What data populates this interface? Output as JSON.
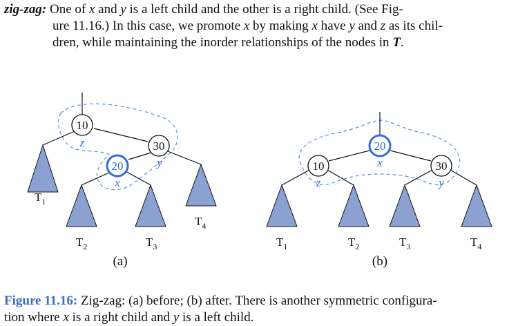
{
  "paragraph": {
    "term": "zig-zag",
    "colon": ":",
    "line1_a": " One of ",
    "x": "x",
    "line1_b": " and ",
    "y": "y",
    "line1_c": " is a left child and the other is a right child. (See Fig-",
    "line2_a": "ure 11.16.) In this case, we promote ",
    "line2_b": " by making ",
    "line2_c": " have ",
    "line2_d": " and ",
    "z": "z",
    "line2_e": " as its chil-",
    "line3_a": "dren, while maintaining the inorder relationships of the nodes in ",
    "T": "T",
    "line3_b": "."
  },
  "figure": {
    "a": {
      "nodes": {
        "n10": "10",
        "n30": "30",
        "n20": "20"
      },
      "labels": {
        "z": "z",
        "y": "y",
        "x": "x"
      },
      "subtrees": {
        "t1": "T",
        "t2": "T",
        "t3": "T",
        "t4": "T"
      },
      "subscripts": {
        "t1": "1",
        "t2": "2",
        "t3": "3",
        "t4": "4"
      },
      "caption": "(a)"
    },
    "b": {
      "nodes": {
        "n20": "20",
        "n10": "10",
        "n30": "30"
      },
      "labels": {
        "x": "x",
        "z": "z",
        "y": "y"
      },
      "subtrees": {
        "t1": "T",
        "t2": "T",
        "t3": "T",
        "t4": "T"
      },
      "subscripts": {
        "t1": "1",
        "t2": "2",
        "t3": "3",
        "t4": "4"
      },
      "caption": "(b)"
    }
  },
  "caption": {
    "label": "Figure 11.16:",
    "line1": " Zig-zag: (a) before; (b) after. There is another symmetric configura-",
    "line2_a": "tion where ",
    "x": "x",
    "line2_b": " is a right child and ",
    "y": "y",
    "line2_c": " is a left child."
  },
  "colors": {
    "highlight": "#2f6fd6",
    "triangle_fill": "#8aa1d1",
    "dashed": "#5b8fd8",
    "caption_label": "#3b6ec0"
  }
}
